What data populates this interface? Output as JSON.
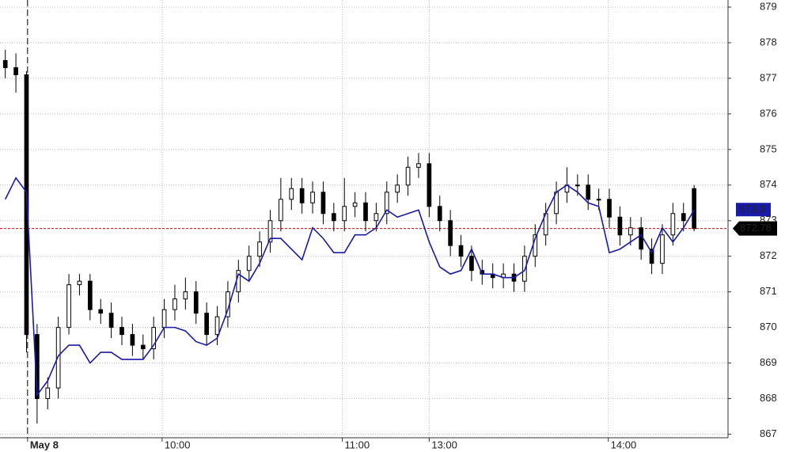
{
  "chart_data": {
    "type": "candlestick",
    "xlim": [
      -0.5,
      68.2
    ],
    "ylim": [
      866.9,
      879.2
    ],
    "yticks": [
      867,
      868,
      869,
      870,
      871,
      872,
      873,
      874,
      875,
      876,
      877,
      878,
      879
    ],
    "xticks": [
      {
        "value": 2.1,
        "label": "May 8"
      },
      {
        "value": 14.8,
        "label": "10:00"
      },
      {
        "value": 31.8,
        "label": "11:00"
      },
      {
        "value": 40.0,
        "label": "13:00"
      },
      {
        "value": 56.9,
        "label": "14:00"
      }
    ],
    "grid": true,
    "session_break": 2.1,
    "candle_color": "#000000",
    "open": [
      877.5,
      877.3,
      877.1,
      869.8,
      868,
      868.3,
      870,
      871.2,
      871.3,
      870.5,
      870.4,
      870,
      869.8,
      869.5,
      869.4,
      870,
      870.5,
      870.8,
      871,
      870.4,
      869.8,
      870.3,
      871,
      871.6,
      872,
      872.4,
      873,
      873.6,
      873.9,
      873.5,
      873.8,
      873.2,
      873,
      873.4,
      873.5,
      873,
      873.2,
      873.8,
      874,
      874.5,
      874.6,
      873.4,
      873,
      872.3,
      872,
      871.6,
      871.5,
      871.4,
      871.5,
      871.3,
      872,
      872.6,
      873.2,
      873.8,
      874,
      874,
      873.6,
      873.6,
      873.1,
      872.6,
      872.8,
      872.2,
      871.8,
      872.6,
      873.2,
      873.9
    ],
    "high": [
      877.8,
      877.7,
      877.2,
      870.1,
      868.6,
      870.3,
      871.5,
      871.5,
      871.5,
      870.8,
      870.7,
      870.3,
      870.1,
      869.8,
      870.3,
      870.8,
      871.2,
      871.4,
      871.3,
      870.7,
      870.6,
      871.3,
      871.9,
      872.3,
      872.7,
      873.3,
      874.2,
      874.2,
      874.2,
      874.1,
      874.1,
      873.5,
      874.2,
      873.8,
      873.8,
      873.5,
      874.1,
      874.3,
      874.8,
      874.9,
      874.9,
      873.7,
      873.3,
      872.6,
      872.3,
      871.9,
      871.8,
      871.8,
      871.8,
      872.3,
      872.9,
      873.5,
      874.1,
      874.5,
      874.3,
      874.3,
      873.9,
      873.9,
      873.4,
      873.1,
      873.1,
      872.5,
      872.9,
      873.5,
      873.5,
      874
    ],
    "low": [
      877,
      876.6,
      869.3,
      867.3,
      867.7,
      868,
      869.8,
      870.9,
      870.2,
      870.1,
      869.7,
      869.5,
      869.2,
      869.1,
      869.1,
      869.7,
      870.2,
      870.5,
      870.1,
      869.5,
      869.5,
      870,
      870.7,
      871.3,
      871.7,
      872.1,
      872.7,
      873.3,
      873.2,
      873.2,
      872.9,
      872.7,
      872.7,
      873.1,
      872.7,
      872.7,
      872.9,
      873.5,
      873.7,
      874.2,
      873.1,
      872.7,
      872,
      871.7,
      871.3,
      871.2,
      871.1,
      871.1,
      871,
      871,
      871.7,
      872.3,
      872.9,
      873.5,
      873.7,
      873.3,
      873.3,
      872.8,
      872.3,
      872.3,
      871.9,
      871.5,
      871.5,
      872.3,
      872.7,
      872.7
    ],
    "close": [
      877.3,
      877.1,
      869.8,
      868,
      868.3,
      870,
      871.2,
      871.3,
      870.5,
      870.4,
      870,
      869.8,
      869.5,
      869.4,
      870,
      870.5,
      870.8,
      871,
      870.4,
      869.8,
      870.3,
      871,
      871.6,
      872,
      872.4,
      873,
      873.6,
      873.9,
      873.5,
      873.8,
      873.2,
      873,
      873.4,
      873.5,
      873,
      873.2,
      873.8,
      874,
      874.5,
      874.6,
      873.4,
      873,
      872.3,
      872,
      871.6,
      871.5,
      871.4,
      871.5,
      871.3,
      872,
      872.6,
      873.2,
      873.8,
      874,
      874,
      873.6,
      873.6,
      873.1,
      872.6,
      872.8,
      872.2,
      871.8,
      872.6,
      873.2,
      873,
      872.78
    ],
    "line": {
      "color": "#1a1aa8",
      "values": [
        873.6,
        874.2,
        873.8,
        868.1,
        868.5,
        869.2,
        869.5,
        869.5,
        869,
        869.3,
        869.3,
        869.1,
        869.1,
        869.1,
        869.5,
        870,
        870,
        869.9,
        869.6,
        869.5,
        869.7,
        870.5,
        871.5,
        871.3,
        871.8,
        872.5,
        872.5,
        872.2,
        871.9,
        872.8,
        872.5,
        872.1,
        872.1,
        872.6,
        872.6,
        872.8,
        873.3,
        873.1,
        873.2,
        873.3,
        872.4,
        871.7,
        871.5,
        871.6,
        872.2,
        871.5,
        871.5,
        871.4,
        871.4,
        871.6,
        872.5,
        873.2,
        873.8,
        874,
        873.8,
        873.5,
        873.4,
        872.1,
        872.2,
        872.4,
        872.6,
        872.1,
        872.8,
        872.4,
        872.8,
        873.3
      ]
    },
    "last_price_color": "#d00000"
  }
}
